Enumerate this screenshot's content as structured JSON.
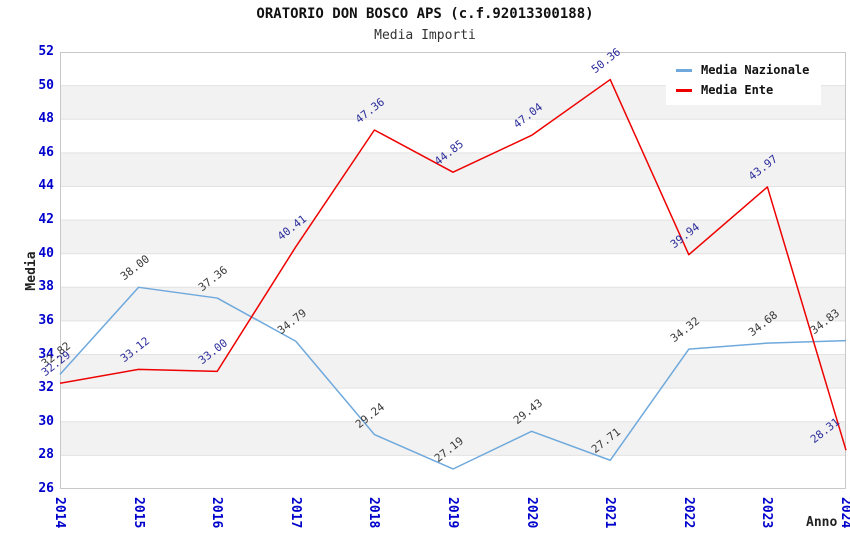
{
  "title": "ORATORIO DON BOSCO APS (c.f.92013300188)",
  "subtitle": "Media Importi",
  "colors": {
    "axis_tick": "#0000cc",
    "grid_band": "#f2f2f2",
    "grid_line": "#e2e2e2",
    "plot_border": "#c8c8c8",
    "series_nazionale": "#6fa9dc",
    "series_ente": "#ee0000"
  },
  "chart_data": {
    "type": "line",
    "x": [
      "2014",
      "2015",
      "2016",
      "2017",
      "2018",
      "2019",
      "2020",
      "2021",
      "2022",
      "2023",
      "2024"
    ],
    "series": [
      {
        "name": "Media Nazionale",
        "color": "#6fa9dc",
        "label_color": "#3a3a3a",
        "values": [
          32.82,
          38.0,
          37.36,
          34.79,
          29.24,
          27.19,
          29.43,
          27.71,
          34.32,
          34.68,
          34.83
        ]
      },
      {
        "name": "Media Ente",
        "color": "#ee0000",
        "label_color": "#2d2d9c",
        "values": [
          32.29,
          33.12,
          33.0,
          40.41,
          47.36,
          44.85,
          47.04,
          50.36,
          39.94,
          43.97,
          28.31
        ]
      }
    ],
    "xlabel": "Anno",
    "ylabel": "Media",
    "ylim": [
      26,
      52
    ],
    "ytick_step": 2,
    "grid": "horizontal-alternating-bands",
    "legend_position": "top-right",
    "point_labels": "value-2-decimals-rotated"
  }
}
